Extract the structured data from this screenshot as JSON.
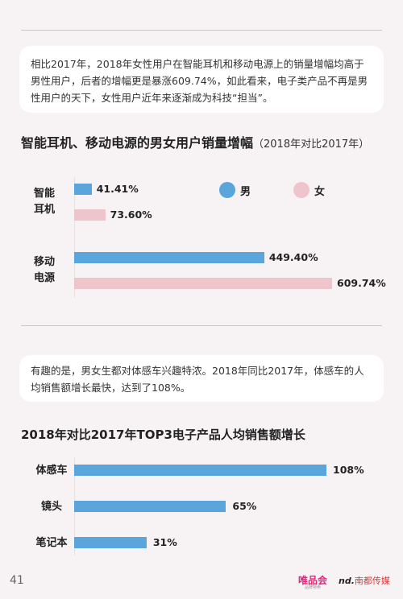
{
  "top_card": {
    "text": "相比2017年，2018年女性用户在智能耳机和移动电源上的销量增幅均高于男性用户，后者的增幅更是暴涨609.74%，如此看来，电子类产品不再是男性用户的天下，女性用户近年来逐渐成为科技“担当”。"
  },
  "chart1": {
    "title": "智能耳机、移动电源的男女用户销量增幅",
    "subtitle": "（2018年对比2017年）",
    "legend": {
      "male": "男",
      "female": "女"
    }
  },
  "chart2": {
    "title": "2018年对比2017年TOP3电子产品人均销售额增长"
  },
  "bottom_card": {
    "text": "有趣的是，男女生都对体感车兴趣特浓。2018年同比2017年，体感车的人均销售额增长最快，达到了108%。"
  },
  "footer": {
    "page_number": "41",
    "brand_vip": "唯品会",
    "brand_vip_sub": "品牌特卖",
    "brand_nd_mark": "nd.",
    "brand_nd": "南都传媒"
  },
  "colors": {
    "male": "#5aa6dc",
    "female": "#efc5cc"
  },
  "chart_data": [
    {
      "type": "bar",
      "orientation": "horizontal",
      "title": "智能耳机、移动电源的男女用户销量增幅（2018年对比2017年）",
      "categories": [
        "智能耳机",
        "移动电源"
      ],
      "category_lines": [
        [
          "智能",
          "耳机"
        ],
        [
          "移动",
          "电源"
        ]
      ],
      "series": [
        {
          "name": "男",
          "values": [
            41.41,
            449.4
          ],
          "labels": [
            "41.41%",
            "449.40%"
          ]
        },
        {
          "name": "女",
          "values": [
            73.6,
            609.74
          ],
          "labels": [
            "73.60%",
            "609.74%"
          ]
        }
      ],
      "unit": "%",
      "legend_position": "top-right"
    },
    {
      "type": "bar",
      "orientation": "horizontal",
      "title": "2018年对比2017年TOP3电子产品人均销售额增长",
      "categories": [
        "体感车",
        "镜头",
        "笔记本"
      ],
      "values": [
        108,
        65,
        31
      ],
      "labels": [
        "108%",
        "65%",
        "31%"
      ],
      "unit": "%"
    }
  ]
}
